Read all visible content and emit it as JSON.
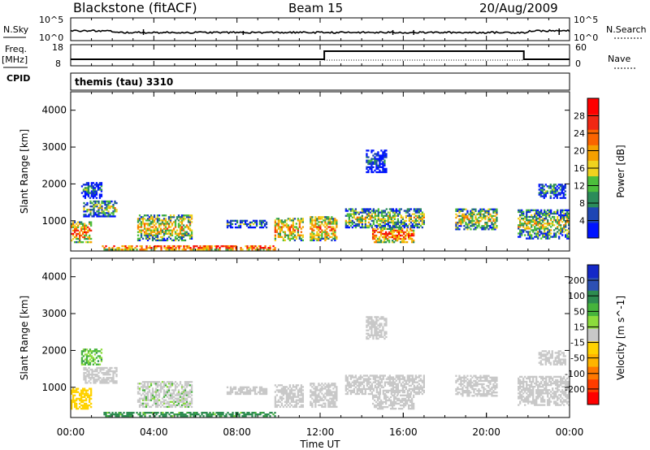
{
  "header": {
    "title": "Blackstone (fitACF)",
    "beam": "Beam 15",
    "date": "20/Aug/2009"
  },
  "nsky_panel": {
    "left_label": "N.Sky",
    "left_ticks": [
      "10^5",
      "10^0"
    ],
    "right_ticks": [
      "10^5",
      "10^0"
    ],
    "right_label": "N.Search"
  },
  "freq_panel": {
    "left_label_1": "Freq.",
    "left_label_2": "[MHz]",
    "left_ticks": [
      "18",
      "8"
    ],
    "right_ticks": [
      "60",
      "0"
    ],
    "right_label": "Nave",
    "cpid_label": "CPID"
  },
  "cpid_text": "themis (tau) 3310",
  "x_axis": {
    "ticks": [
      "00:00",
      "04:00",
      "08:00",
      "12:00",
      "16:00",
      "20:00",
      "00:00"
    ],
    "label": "Time UT"
  },
  "colors": {
    "power_scale": [
      "#0014ff",
      "#1e46b4",
      "#2b8c5a",
      "#4cbe3c",
      "#f0d21e",
      "#f5a000",
      "#fa6400",
      "#f02814",
      "#ff0000"
    ],
    "velocity_scale": [
      "#1428c8",
      "#2d50b4",
      "#2d8c50",
      "#46b43c",
      "#8cdc3c",
      "#c8c8c8",
      "#ffd200",
      "#ffb400",
      "#ff7800",
      "#ff3c00",
      "#ff0000"
    ]
  },
  "chart_data": [
    {
      "type": "heatmap",
      "name": "power-panel",
      "ylabel": "Slant Range [km]",
      "xlabel": "",
      "xlim": [
        0,
        24
      ],
      "ylim": [
        180,
        4500
      ],
      "yticks": [
        "1000",
        "2000",
        "3000",
        "4000"
      ],
      "colorbar": {
        "label": "Power [dB]",
        "ticks": [
          "4",
          "8",
          "12",
          "16",
          "20",
          "24",
          "28"
        ],
        "range": [
          0,
          32
        ]
      },
      "regions": [
        {
          "t0": 0.0,
          "t1": 1.0,
          "r0": 400,
          "r1": 950,
          "intensity": 0.75
        },
        {
          "t0": 0.6,
          "t1": 2.2,
          "r0": 1100,
          "r1": 1550,
          "intensity": 0.45
        },
        {
          "t0": 0.5,
          "t1": 1.5,
          "r0": 1600,
          "r1": 2050,
          "intensity": 0.25
        },
        {
          "t0": 3.2,
          "t1": 5.8,
          "r0": 450,
          "r1": 1150,
          "intensity": 0.6
        },
        {
          "t0": 1.5,
          "t1": 9.8,
          "r0": 200,
          "r1": 330,
          "intensity": 0.85
        },
        {
          "t0": 7.5,
          "t1": 9.4,
          "r0": 800,
          "r1": 1000,
          "intensity": 0.3
        },
        {
          "t0": 9.8,
          "t1": 11.2,
          "r0": 450,
          "r1": 1050,
          "intensity": 0.65
        },
        {
          "t0": 11.5,
          "t1": 12.8,
          "r0": 450,
          "r1": 1100,
          "intensity": 0.7
        },
        {
          "t0": 13.2,
          "t1": 17.0,
          "r0": 800,
          "r1": 1300,
          "intensity": 0.5
        },
        {
          "t0": 14.5,
          "t1": 16.5,
          "r0": 400,
          "r1": 800,
          "intensity": 0.8
        },
        {
          "t0": 18.5,
          "t1": 20.5,
          "r0": 750,
          "r1": 1300,
          "intensity": 0.55
        },
        {
          "t0": 21.5,
          "t1": 24.0,
          "r0": 500,
          "r1": 1300,
          "intensity": 0.5
        },
        {
          "t0": 22.5,
          "t1": 23.8,
          "r0": 1600,
          "r1": 2000,
          "intensity": 0.3
        },
        {
          "t0": 14.2,
          "t1": 15.2,
          "r0": 2300,
          "r1": 2900,
          "intensity": 0.2
        }
      ]
    },
    {
      "type": "heatmap",
      "name": "velocity-panel",
      "ylabel": "Slant Range [km]",
      "xlabel": "Time UT",
      "xlim": [
        0,
        24
      ],
      "ylim": [
        180,
        4500
      ],
      "yticks": [
        "1000",
        "2000",
        "3000",
        "4000"
      ],
      "colorbar": {
        "label": "Velocity [m s^-1]",
        "ticks": [
          "200",
          "100",
          "50",
          "15",
          "-15",
          "-50",
          "-100",
          "-200"
        ],
        "range": [
          -250,
          250
        ]
      },
      "regions": [
        {
          "t0": 0.0,
          "t1": 1.0,
          "r0": 400,
          "r1": 950,
          "velocity": -30
        },
        {
          "t0": 0.6,
          "t1": 2.2,
          "r0": 1100,
          "r1": 1550,
          "velocity": 0
        },
        {
          "t0": 0.5,
          "t1": 1.5,
          "r0": 1600,
          "r1": 2050,
          "velocity": 40
        },
        {
          "t0": 3.2,
          "t1": 5.8,
          "r0": 450,
          "r1": 1150,
          "velocity": 5
        },
        {
          "t0": 1.5,
          "t1": 9.8,
          "r0": 200,
          "r1": 330,
          "velocity": 60
        },
        {
          "t0": 7.5,
          "t1": 9.4,
          "r0": 800,
          "r1": 1000,
          "velocity": 0
        },
        {
          "t0": 9.8,
          "t1": 11.2,
          "r0": 450,
          "r1": 1050,
          "velocity": 0
        },
        {
          "t0": 11.5,
          "t1": 12.8,
          "r0": 450,
          "r1": 1100,
          "velocity": 0
        },
        {
          "t0": 13.2,
          "t1": 17.0,
          "r0": 800,
          "r1": 1300,
          "velocity": 0
        },
        {
          "t0": 14.5,
          "t1": 16.5,
          "r0": 400,
          "r1": 800,
          "velocity": 0
        },
        {
          "t0": 18.5,
          "t1": 20.5,
          "r0": 750,
          "r1": 1300,
          "velocity": 0
        },
        {
          "t0": 21.5,
          "t1": 24.0,
          "r0": 500,
          "r1": 1300,
          "velocity": 0
        },
        {
          "t0": 22.5,
          "t1": 23.8,
          "r0": 1600,
          "r1": 2000,
          "velocity": 0
        },
        {
          "t0": 14.2,
          "t1": 15.2,
          "r0": 2300,
          "r1": 2900,
          "velocity": 0
        }
      ]
    }
  ]
}
